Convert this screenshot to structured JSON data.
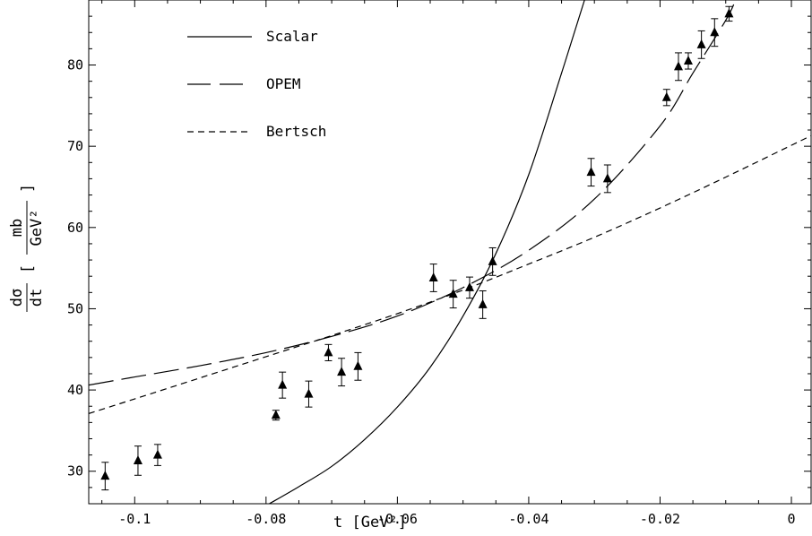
{
  "chart_data": {
    "type": "line",
    "title": "",
    "xlabel": "t [GeV²]",
    "ylabel": {
      "prefix_num": "dσ",
      "prefix_den": "dt",
      "frac_num": "mb",
      "frac_den": "GeV²"
    },
    "xlim": [
      -0.107,
      0.003
    ],
    "ylim": [
      26,
      88
    ],
    "x_ticks": [
      -0.1,
      -0.08,
      -0.06,
      -0.04,
      -0.02,
      0
    ],
    "x_tick_labels": [
      "-0.1",
      "-0.08",
      "-0.06",
      "-0.04",
      "-0.02",
      "0"
    ],
    "y_ticks": [
      30,
      40,
      50,
      60,
      70,
      80
    ],
    "y_tick_labels": [
      "30",
      "40",
      "50",
      "60",
      "70",
      "80"
    ],
    "legend_position": "top-left",
    "grid": false,
    "series": [
      {
        "name": "Scalar",
        "style": "solid",
        "x": [
          -0.0795,
          -0.075,
          -0.07,
          -0.065,
          -0.06,
          -0.055,
          -0.05,
          -0.045,
          -0.04,
          -0.035,
          -0.0315
        ],
        "y": [
          26,
          28.1,
          30.6,
          33.9,
          37.9,
          42.8,
          49.1,
          56.8,
          66.5,
          79,
          88
        ]
      },
      {
        "name": "OPEM",
        "style": "long-dash",
        "x": [
          -0.107,
          -0.1,
          -0.09,
          -0.08,
          -0.07,
          -0.06,
          -0.05,
          -0.04,
          -0.03,
          -0.02,
          -0.015,
          -0.01,
          -0.0085
        ],
        "y": [
          40.6,
          41.6,
          43.0,
          44.6,
          46.6,
          49.1,
          52.6,
          57.2,
          63.5,
          72.5,
          79.0,
          85.5,
          88
        ]
      },
      {
        "name": "Bertsch",
        "style": "short-dash",
        "x": [
          -0.107,
          -0.1,
          -0.09,
          -0.08,
          -0.07,
          -0.06,
          -0.05,
          -0.04,
          -0.03,
          -0.02,
          -0.01,
          0.003
        ],
        "y": [
          37.1,
          38.9,
          41.5,
          44.1,
          46.7,
          49.4,
          52.3,
          55.5,
          58.8,
          62.4,
          66.2,
          71.3
        ]
      }
    ],
    "data_points": {
      "marker": "triangle",
      "points": [
        {
          "x": -0.1045,
          "y": 29.4,
          "err": 1.7
        },
        {
          "x": -0.0995,
          "y": 31.3,
          "err": 1.8
        },
        {
          "x": -0.0965,
          "y": 32.0,
          "err": 1.3
        },
        {
          "x": -0.0785,
          "y": 36.9,
          "err": 0.6
        },
        {
          "x": -0.0775,
          "y": 40.6,
          "err": 1.6
        },
        {
          "x": -0.0735,
          "y": 39.5,
          "err": 1.6
        },
        {
          "x": -0.0705,
          "y": 44.6,
          "err": 1.0
        },
        {
          "x": -0.0685,
          "y": 42.2,
          "err": 1.7
        },
        {
          "x": -0.066,
          "y": 42.9,
          "err": 1.7
        },
        {
          "x": -0.0545,
          "y": 53.8,
          "err": 1.7
        },
        {
          "x": -0.0515,
          "y": 51.8,
          "err": 1.7
        },
        {
          "x": -0.049,
          "y": 52.6,
          "err": 1.3
        },
        {
          "x": -0.047,
          "y": 50.5,
          "err": 1.7
        },
        {
          "x": -0.0455,
          "y": 55.8,
          "err": 1.7
        },
        {
          "x": -0.0305,
          "y": 66.8,
          "err": 1.7
        },
        {
          "x": -0.028,
          "y": 66.0,
          "err": 1.7
        },
        {
          "x": -0.019,
          "y": 76.0,
          "err": 1.0
        },
        {
          "x": -0.0172,
          "y": 79.8,
          "err": 1.7
        },
        {
          "x": -0.0157,
          "y": 80.5,
          "err": 1.0
        },
        {
          "x": -0.0137,
          "y": 82.5,
          "err": 1.7
        },
        {
          "x": -0.0117,
          "y": 84.0,
          "err": 1.7
        },
        {
          "x": -0.0095,
          "y": 86.3,
          "err": 0.9
        }
      ]
    }
  }
}
